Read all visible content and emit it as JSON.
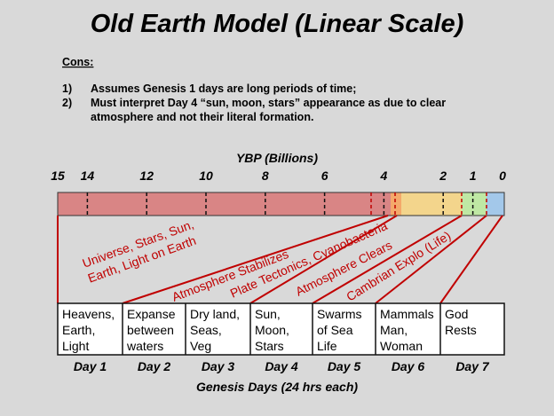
{
  "title": "Old Earth Model (Linear Scale)",
  "cons": {
    "heading": "Cons:",
    "items": [
      {
        "num": "1)",
        "lines": [
          "Assumes Genesis 1 days are long periods of time;"
        ]
      },
      {
        "num": "2)",
        "lines": [
          "Must interpret Day 4 “sun, moon, stars” appearance as due to clear",
          "atmosphere and not their literal formation."
        ]
      }
    ]
  },
  "axis": {
    "label": "YBP (Billions)",
    "xlim": [
      15,
      0
    ],
    "ticks": [
      15,
      14,
      12,
      10,
      8,
      6,
      4,
      2,
      1,
      0
    ]
  },
  "events": [
    [
      "Universe, Stars, Sun,",
      "Earth, Light on  Earth"
    ],
    [
      "Atmosphere Stabilizes"
    ],
    [
      "Plate Tectonics, Cyanobacteria"
    ],
    [
      "Atmosphere Clears"
    ],
    [
      "Cambrian Explo (Life)"
    ]
  ],
  "days": [
    {
      "text": [
        "Heavens,",
        "Earth,",
        "Light"
      ],
      "label": "Day 1"
    },
    {
      "text": [
        "Expanse",
        "between",
        "waters"
      ],
      "label": "Day 2"
    },
    {
      "text": [
        "Dry land,",
        "Seas,",
        "Veg"
      ],
      "label": "Day 3"
    },
    {
      "text": [
        "Sun,",
        "Moon,",
        "Stars"
      ],
      "label": "Day 4"
    },
    {
      "text": [
        "Swarms",
        "of Sea",
        "Life"
      ],
      "label": "Day 5"
    },
    {
      "text": [
        "Mammals",
        "Man,",
        "Woman"
      ],
      "label": "Day 6"
    },
    {
      "text": [
        "God",
        "Rests"
      ],
      "label": "Day 7"
    }
  ],
  "footer": "Genesis Days (24 hrs each)"
}
